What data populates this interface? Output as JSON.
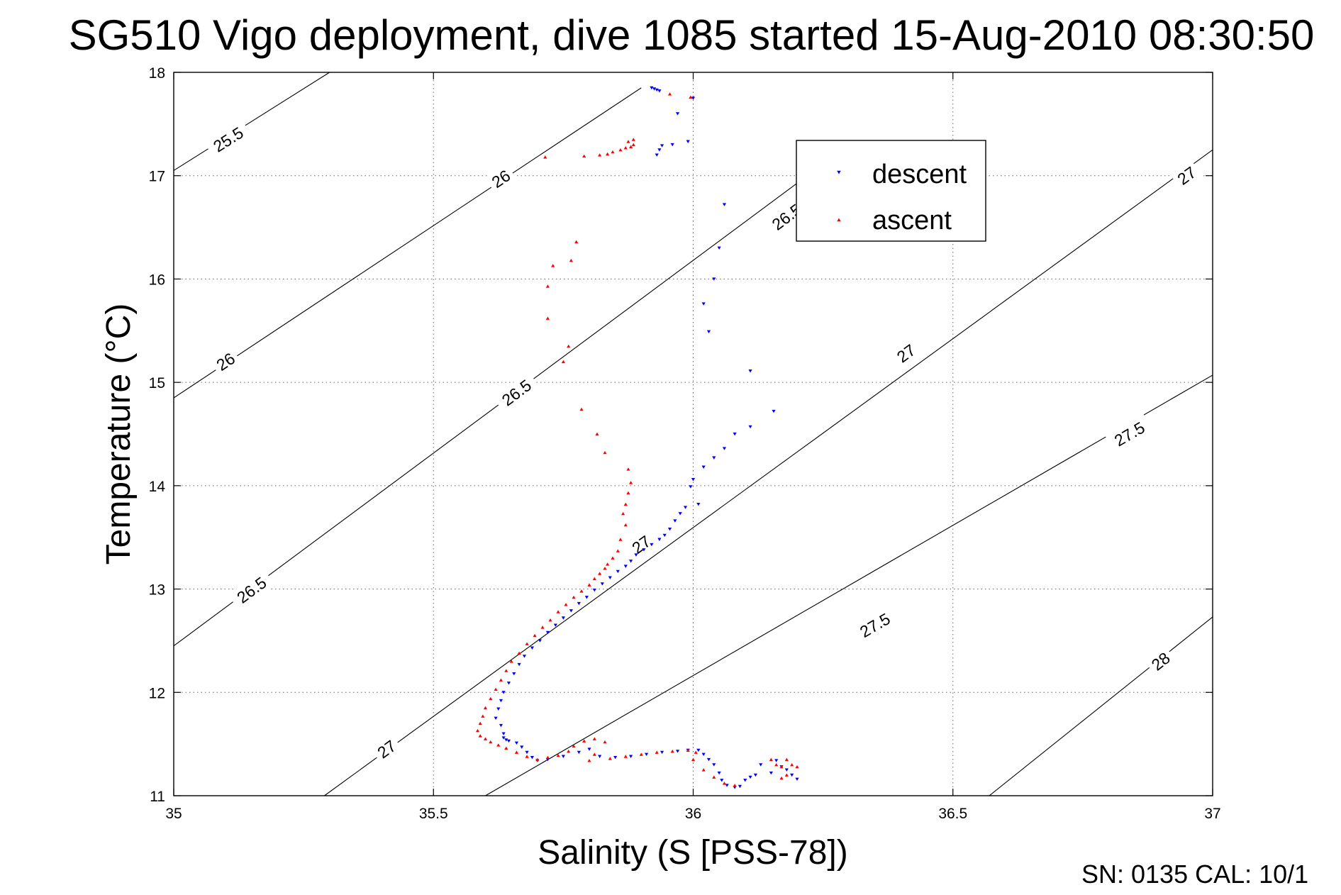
{
  "chart_data": {
    "type": "scatter",
    "title": "SG510 Vigo deployment, dive 1085 started 15-Aug-2010 08:30:50",
    "xlabel": "Salinity (S [PSS-78])",
    "ylabel": "Temperature (°C)",
    "xlim": [
      35,
      37
    ],
    "ylim": [
      11,
      18
    ],
    "xticks": [
      35,
      35.5,
      36,
      36.5,
      37
    ],
    "xtick_labels": [
      "35",
      "35.5",
      "36",
      "36.5",
      "37"
    ],
    "yticks": [
      11,
      12,
      13,
      14,
      15,
      16,
      17,
      18
    ],
    "ytick_labels": [
      "11",
      "12",
      "13",
      "14",
      "15",
      "16",
      "17",
      "18"
    ],
    "grid": true,
    "legend_position": "top-right",
    "footer_text": "SN: 0135  CAL: 10/1",
    "series": [
      {
        "name": "descent",
        "color": "#0000ff",
        "marker": "triangle-down",
        "points": [
          [
            35.92,
            17.85
          ],
          [
            35.925,
            17.84
          ],
          [
            35.93,
            17.83
          ],
          [
            35.935,
            17.82
          ],
          [
            36.0,
            17.75
          ],
          [
            35.97,
            17.6
          ],
          [
            35.99,
            17.33
          ],
          [
            35.96,
            17.3
          ],
          [
            35.94,
            17.29
          ],
          [
            35.935,
            17.25
          ],
          [
            35.93,
            17.2
          ],
          [
            36.06,
            16.72
          ],
          [
            36.05,
            16.3
          ],
          [
            36.04,
            16.0
          ],
          [
            36.02,
            15.76
          ],
          [
            36.03,
            15.49
          ],
          [
            36.11,
            15.11
          ],
          [
            36.155,
            14.72
          ],
          [
            36.11,
            14.57
          ],
          [
            36.08,
            14.5
          ],
          [
            36.06,
            14.36
          ],
          [
            36.04,
            14.27
          ],
          [
            36.02,
            14.18
          ],
          [
            36.0,
            14.06
          ],
          [
            35.995,
            13.99
          ],
          [
            36.01,
            13.82
          ],
          [
            35.985,
            13.79
          ],
          [
            35.975,
            13.73
          ],
          [
            35.965,
            13.66
          ],
          [
            35.955,
            13.58
          ],
          [
            35.945,
            13.52
          ],
          [
            35.935,
            13.48
          ],
          [
            35.92,
            13.43
          ],
          [
            35.905,
            13.38
          ],
          [
            35.89,
            13.33
          ],
          [
            35.88,
            13.27
          ],
          [
            35.87,
            13.22
          ],
          [
            35.855,
            13.17
          ],
          [
            35.84,
            13.11
          ],
          [
            35.825,
            13.05
          ],
          [
            35.81,
            12.99
          ],
          [
            35.795,
            12.92
          ],
          [
            35.78,
            12.86
          ],
          [
            35.765,
            12.79
          ],
          [
            35.75,
            12.72
          ],
          [
            35.735,
            12.65
          ],
          [
            35.72,
            12.58
          ],
          [
            35.705,
            12.5
          ],
          [
            35.69,
            12.43
          ],
          [
            35.675,
            12.35
          ],
          [
            35.665,
            12.27
          ],
          [
            35.655,
            12.18
          ],
          [
            35.645,
            12.09
          ],
          [
            35.635,
            12.0
          ],
          [
            35.63,
            11.92
          ],
          [
            35.625,
            11.84
          ],
          [
            35.62,
            11.75
          ],
          [
            35.63,
            11.68
          ],
          [
            35.635,
            11.6
          ],
          [
            35.635,
            11.56
          ],
          [
            35.64,
            11.54
          ],
          [
            35.645,
            11.53
          ],
          [
            35.66,
            11.51
          ],
          [
            35.67,
            11.47
          ],
          [
            35.68,
            11.42
          ],
          [
            35.69,
            11.37
          ],
          [
            35.7,
            11.34
          ],
          [
            35.72,
            11.35
          ],
          [
            35.75,
            11.38
          ],
          [
            35.78,
            11.42
          ],
          [
            35.8,
            11.45
          ],
          [
            35.82,
            11.38
          ],
          [
            35.85,
            11.37
          ],
          [
            35.88,
            11.38
          ],
          [
            35.91,
            11.4
          ],
          [
            35.94,
            11.42
          ],
          [
            35.97,
            11.43
          ],
          [
            35.99,
            11.44
          ],
          [
            36.01,
            11.44
          ],
          [
            36.02,
            11.4
          ],
          [
            36.03,
            11.35
          ],
          [
            36.04,
            11.3
          ],
          [
            36.05,
            11.22
          ],
          [
            36.055,
            11.15
          ],
          [
            36.065,
            11.1
          ],
          [
            36.08,
            11.08
          ],
          [
            36.09,
            11.09
          ],
          [
            36.1,
            11.15
          ],
          [
            36.12,
            11.2
          ],
          [
            36.15,
            11.22
          ],
          [
            36.17,
            11.28
          ],
          [
            36.18,
            11.25
          ],
          [
            36.19,
            11.2
          ],
          [
            36.2,
            11.16
          ],
          [
            36.16,
            11.34
          ],
          [
            36.13,
            11.3
          ],
          [
            36.11,
            11.18
          ]
        ]
      },
      {
        "name": "ascent",
        "color": "#ff0000",
        "marker": "triangle-up",
        "points": [
          [
            35.955,
            17.79
          ],
          [
            35.995,
            17.76
          ],
          [
            35.885,
            17.35
          ],
          [
            35.875,
            17.33
          ],
          [
            35.885,
            17.3
          ],
          [
            35.88,
            17.28
          ],
          [
            35.87,
            17.27
          ],
          [
            35.86,
            17.25
          ],
          [
            35.845,
            17.23
          ],
          [
            35.835,
            17.21
          ],
          [
            35.82,
            17.2
          ],
          [
            35.79,
            17.19
          ],
          [
            35.715,
            17.18
          ],
          [
            35.775,
            16.36
          ],
          [
            35.765,
            16.18
          ],
          [
            35.73,
            16.13
          ],
          [
            35.72,
            15.93
          ],
          [
            35.72,
            15.62
          ],
          [
            35.76,
            15.35
          ],
          [
            35.75,
            15.2
          ],
          [
            35.785,
            14.74
          ],
          [
            35.815,
            14.5
          ],
          [
            35.83,
            14.32
          ],
          [
            35.875,
            14.16
          ],
          [
            35.88,
            14.03
          ],
          [
            35.875,
            13.93
          ],
          [
            35.87,
            13.82
          ],
          [
            35.865,
            13.73
          ],
          [
            35.87,
            13.62
          ],
          [
            35.86,
            13.48
          ],
          [
            35.855,
            13.37
          ],
          [
            35.845,
            13.3
          ],
          [
            35.835,
            13.24
          ],
          [
            35.83,
            13.2
          ],
          [
            35.82,
            13.15
          ],
          [
            35.81,
            13.1
          ],
          [
            35.8,
            13.04
          ],
          [
            35.785,
            12.98
          ],
          [
            35.77,
            12.92
          ],
          [
            35.755,
            12.85
          ],
          [
            35.74,
            12.78
          ],
          [
            35.725,
            12.7
          ],
          [
            35.71,
            12.63
          ],
          [
            35.695,
            12.55
          ],
          [
            35.68,
            12.47
          ],
          [
            35.665,
            12.38
          ],
          [
            35.65,
            12.3
          ],
          [
            35.64,
            12.21
          ],
          [
            35.63,
            12.12
          ],
          [
            35.62,
            12.03
          ],
          [
            35.61,
            11.94
          ],
          [
            35.6,
            11.85
          ],
          [
            35.595,
            11.77
          ],
          [
            35.59,
            11.7
          ],
          [
            35.585,
            11.63
          ],
          [
            35.59,
            11.58
          ],
          [
            35.6,
            11.55
          ],
          [
            35.61,
            11.52
          ],
          [
            35.625,
            11.49
          ],
          [
            35.64,
            11.46
          ],
          [
            35.66,
            11.42
          ],
          [
            35.68,
            11.38
          ],
          [
            35.7,
            11.35
          ],
          [
            35.72,
            11.37
          ],
          [
            35.74,
            11.39
          ],
          [
            35.76,
            11.43
          ],
          [
            35.77,
            11.48
          ],
          [
            35.79,
            11.53
          ],
          [
            35.81,
            11.55
          ],
          [
            35.83,
            11.52
          ],
          [
            35.81,
            11.4
          ],
          [
            35.8,
            11.34
          ],
          [
            35.84,
            11.36
          ],
          [
            35.87,
            11.38
          ],
          [
            35.9,
            11.4
          ],
          [
            35.93,
            11.42
          ],
          [
            35.96,
            11.43
          ],
          [
            35.99,
            11.44
          ],
          [
            36.005,
            11.42
          ],
          [
            36.0,
            11.35
          ],
          [
            36.02,
            11.25
          ],
          [
            36.04,
            11.18
          ],
          [
            36.06,
            11.12
          ],
          [
            36.08,
            11.1
          ],
          [
            36.15,
            11.35
          ],
          [
            36.16,
            11.3
          ],
          [
            36.17,
            11.28
          ],
          [
            36.18,
            11.35
          ],
          [
            36.19,
            11.3
          ],
          [
            36.2,
            11.28
          ],
          [
            36.18,
            11.2
          ],
          [
            36.17,
            11.17
          ]
        ]
      }
    ],
    "isopycnals": [
      {
        "sigma": 25.5,
        "points": [
          [
            35,
            17.05
          ],
          [
            35.3,
            18.0
          ]
        ],
        "labels": [
          {
            "text": "25.5",
            "s": 35.105,
            "t": 17.35
          }
        ]
      },
      {
        "sigma": 26,
        "points": [
          [
            35,
            14.85
          ],
          [
            35.9,
            17.85
          ]
        ],
        "labels": [
          {
            "text": "26",
            "s": 35.1,
            "t": 15.2
          },
          {
            "text": "26",
            "s": 35.63,
            "t": 16.97
          }
        ]
      },
      {
        "sigma": 26.5,
        "points": [
          [
            35,
            12.45
          ],
          [
            36.3,
            17.3
          ]
        ],
        "labels": [
          {
            "text": "26.5",
            "s": 35.15,
            "t": 12.99
          },
          {
            "text": "26.5",
            "s": 35.66,
            "t": 14.9
          },
          {
            "text": "26.5",
            "s": 36.18,
            "t": 16.6
          }
        ]
      },
      {
        "sigma": 27,
        "points": [
          [
            35.29,
            11.0
          ],
          [
            37.0,
            17.25
          ]
        ],
        "labels": [
          {
            "text": "27",
            "s": 35.41,
            "t": 11.45
          },
          {
            "text": "27",
            "s": 35.9,
            "t": 13.43
          },
          {
            "text": "27",
            "s": 36.41,
            "t": 15.28
          },
          {
            "text": "27",
            "s": 36.95,
            "t": 17.0
          }
        ]
      },
      {
        "sigma": 27.5,
        "points": [
          [
            35.6,
            11.0
          ],
          [
            37.0,
            15.07
          ]
        ],
        "labels": [
          {
            "text": "27.5",
            "s": 36.35,
            "t": 12.65
          },
          {
            "text": "27.5",
            "s": 36.84,
            "t": 14.5
          }
        ]
      },
      {
        "sigma": 28,
        "points": [
          [
            36.57,
            11.0
          ],
          [
            37.0,
            12.73
          ]
        ],
        "labels": [
          {
            "text": "28",
            "s": 36.9,
            "t": 12.3
          }
        ]
      }
    ]
  }
}
